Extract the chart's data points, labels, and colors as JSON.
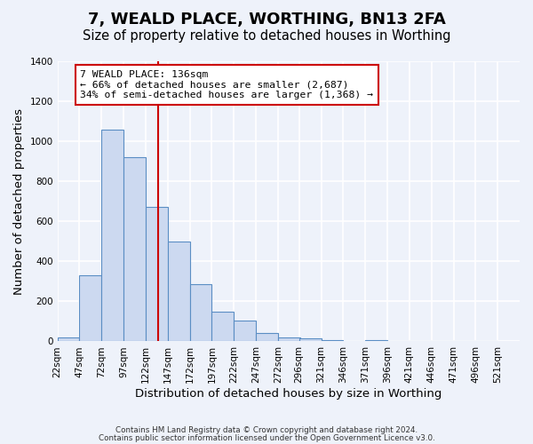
{
  "title": "7, WEALD PLACE, WORTHING, BN13 2FA",
  "subtitle": "Size of property relative to detached houses in Worthing",
  "xlabel": "Distribution of detached houses by size in Worthing",
  "ylabel": "Number of detached properties",
  "bins_left": [
    22,
    47,
    72,
    97,
    122,
    147,
    172,
    197,
    222,
    247,
    272,
    296,
    321,
    346,
    371,
    396,
    421,
    446,
    471,
    496
  ],
  "bin_width": 25,
  "values": [
    20,
    330,
    1060,
    920,
    670,
    500,
    285,
    148,
    102,
    40,
    22,
    15,
    8,
    0,
    5,
    0,
    0,
    0,
    0,
    2
  ],
  "bar_color": "#ccd9f0",
  "bar_edge_color": "#5b8ec4",
  "vline_x": 136,
  "vline_color": "#cc0000",
  "annotation_line1": "7 WEALD PLACE: 136sqm",
  "annotation_line2": "← 66% of detached houses are smaller (2,687)",
  "annotation_line3": "34% of semi-detached houses are larger (1,368) →",
  "annotation_box_color": "#ffffff",
  "annotation_box_edge_color": "#cc0000",
  "ylim": [
    0,
    1400
  ],
  "yticks": [
    0,
    200,
    400,
    600,
    800,
    1000,
    1200,
    1400
  ],
  "tick_labels": [
    "22sqm",
    "47sqm",
    "72sqm",
    "97sqm",
    "122sqm",
    "147sqm",
    "172sqm",
    "197sqm",
    "222sqm",
    "247sqm",
    "272sqm",
    "296sqm",
    "321sqm",
    "346sqm",
    "371sqm",
    "396sqm",
    "421sqm",
    "446sqm",
    "471sqm",
    "496sqm",
    "521sqm"
  ],
  "footnote1": "Contains HM Land Registry data © Crown copyright and database right 2024.",
  "footnote2": "Contains public sector information licensed under the Open Government Licence v3.0.",
  "background_color": "#eef2fa",
  "plot_bg_color": "#eef2fa",
  "grid_color": "#ffffff",
  "title_fontsize": 13,
  "subtitle_fontsize": 10.5,
  "label_fontsize": 9.5,
  "tick_fontsize": 7.5
}
